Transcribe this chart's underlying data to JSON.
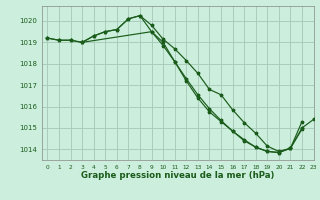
{
  "title": "Graphe pression niveau de la mer (hPa)",
  "bg_color": "#cceedd",
  "grid_color": "#aaccbb",
  "line_color": "#1a5c1a",
  "marker_color": "#1a5c1a",
  "xlim": [
    -0.5,
    23
  ],
  "ylim": [
    1013.5,
    1020.7
  ],
  "yticks": [
    1014,
    1015,
    1016,
    1017,
    1018,
    1019,
    1020
  ],
  "xticks": [
    0,
    1,
    2,
    3,
    4,
    5,
    6,
    7,
    8,
    9,
    10,
    11,
    12,
    13,
    14,
    15,
    16,
    17,
    18,
    19,
    20,
    21,
    22,
    23
  ],
  "series1_x": [
    0,
    1,
    2,
    3,
    4,
    5,
    6,
    7,
    8,
    9,
    10,
    11,
    12,
    13,
    14,
    15,
    16,
    17,
    18,
    19,
    20,
    21,
    22
  ],
  "series1_y": [
    1019.2,
    1019.1,
    1019.1,
    1019.0,
    1019.3,
    1019.5,
    1019.6,
    1020.1,
    1020.25,
    1019.8,
    1019.15,
    1018.7,
    1018.15,
    1017.55,
    1016.8,
    1016.55,
    1015.85,
    1015.25,
    1014.75,
    1014.15,
    1013.9,
    1014.05,
    1015.3
  ],
  "series2_x": [
    0,
    1,
    2,
    3,
    4,
    5,
    6,
    7,
    8,
    9,
    10,
    11,
    12,
    13,
    14,
    15,
    16,
    17,
    18,
    19,
    20,
    21,
    22
  ],
  "series2_y": [
    1019.2,
    1019.1,
    1019.1,
    1019.0,
    1019.3,
    1019.5,
    1019.6,
    1020.1,
    1020.25,
    1019.5,
    1018.85,
    1018.1,
    1017.3,
    1016.55,
    1015.9,
    1015.35,
    1014.85,
    1014.4,
    1014.1,
    1013.9,
    1013.85,
    1014.05,
    1014.95
  ],
  "series3_x": [
    3,
    9,
    10,
    11,
    12,
    13,
    14,
    15,
    16,
    17,
    18,
    19,
    20,
    21,
    22,
    23
  ],
  "series3_y": [
    1019.0,
    1019.5,
    1019.0,
    1018.1,
    1017.2,
    1016.4,
    1015.75,
    1015.3,
    1014.85,
    1014.45,
    1014.1,
    1013.9,
    1013.85,
    1014.05,
    1015.0,
    1015.4
  ]
}
